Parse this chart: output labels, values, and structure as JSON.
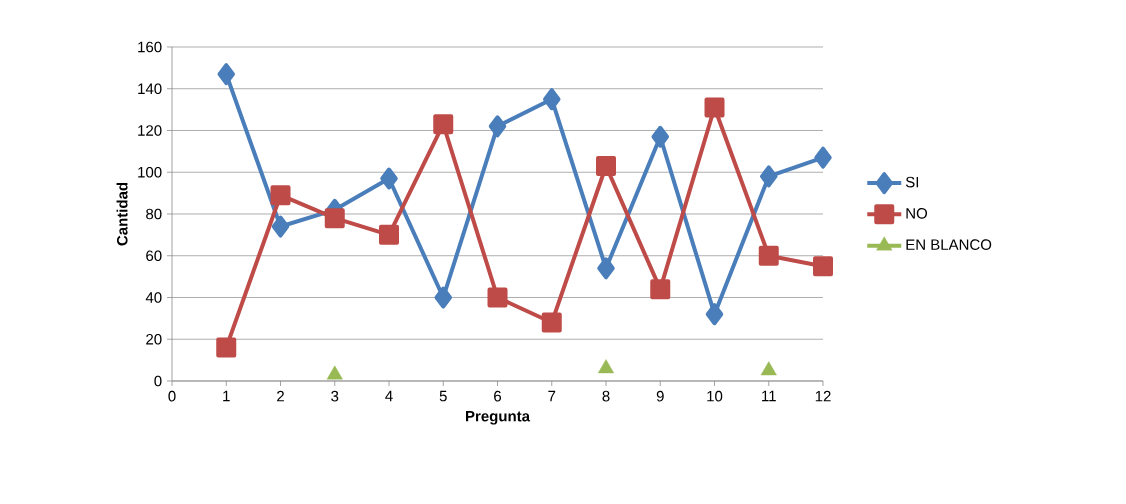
{
  "chart_data": {
    "type": "line",
    "xlabel": "Pregunta",
    "ylabel": "Cantidad",
    "x": [
      1,
      2,
      3,
      4,
      5,
      6,
      7,
      8,
      9,
      10,
      11,
      12
    ],
    "xlim": [
      0,
      12
    ],
    "xticks": [
      0,
      1,
      2,
      3,
      4,
      5,
      6,
      7,
      8,
      9,
      10,
      11,
      12
    ],
    "ylim": [
      0,
      160
    ],
    "yticks": [
      0,
      20,
      40,
      60,
      80,
      100,
      120,
      140,
      160
    ],
    "grid": "y",
    "legend": "right",
    "series": [
      {
        "name": "SI",
        "color": "#4a7ebb",
        "marker": "diamond",
        "values": [
          147,
          74,
          82,
          97,
          40,
          122,
          135,
          54,
          117,
          32,
          98,
          107
        ]
      },
      {
        "name": "NO",
        "color": "#be4b48",
        "marker": "square",
        "values": [
          16,
          89,
          78,
          70,
          123,
          40,
          28,
          103,
          44,
          131,
          60,
          55
        ]
      },
      {
        "name": "EN BLANCO",
        "type": "scatter",
        "color": "#98b954",
        "marker": "triangle",
        "values": [
          null,
          null,
          3,
          null,
          null,
          null,
          null,
          6,
          null,
          null,
          5,
          null
        ]
      }
    ]
  }
}
